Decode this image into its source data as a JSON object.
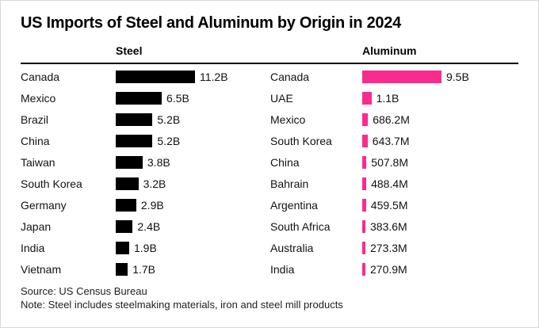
{
  "title": "US Imports of Steel and Aluminum by Origin in 2024",
  "colors": {
    "steel_bar": "#000000",
    "aluminum_bar": "#FA2B8F",
    "text": "#121212",
    "divider": "#000000"
  },
  "chart_data": [
    {
      "type": "bar",
      "orientation": "horizontal",
      "title": "Steel",
      "unit": "USD",
      "bar_color": "#000000",
      "legend_position": "none",
      "grid": false,
      "categories": [
        "Canada",
        "Mexico",
        "Brazil",
        "China",
        "Taiwan",
        "South Korea",
        "Germany",
        "Japan",
        "India",
        "Vietnam"
      ],
      "values": [
        11.2,
        6.5,
        5.2,
        5.2,
        3.8,
        3.2,
        2.9,
        2.4,
        1.9,
        1.7
      ],
      "value_labels": [
        "11.2B",
        "6.5B",
        "5.2B",
        "5.2B",
        "3.8B",
        "3.2B",
        "2.9B",
        "2.4B",
        "1.9B",
        "1.7B"
      ]
    },
    {
      "type": "bar",
      "orientation": "horizontal",
      "title": "Aluminum",
      "unit": "USD",
      "bar_color": "#FA2B8F",
      "legend_position": "none",
      "grid": false,
      "categories": [
        "Canada",
        "UAE",
        "Mexico",
        "South Korea",
        "China",
        "Bahrain",
        "Argentina",
        "South Africa",
        "Australia",
        "India"
      ],
      "values": [
        9.5,
        1.1,
        0.6862,
        0.6437,
        0.5078,
        0.4884,
        0.4595,
        0.3836,
        0.2733,
        0.2709
      ],
      "value_labels": [
        "9.5B",
        "1.1B",
        "686.2M",
        "643.7M",
        "507.8M",
        "488.4M",
        "459.5M",
        "383.6M",
        "273.3M",
        "270.9M"
      ]
    }
  ],
  "footer": {
    "source": "Source: US Census Bureau",
    "note": "Note: Steel includes steelmaking materials, iron and steel mill products"
  }
}
